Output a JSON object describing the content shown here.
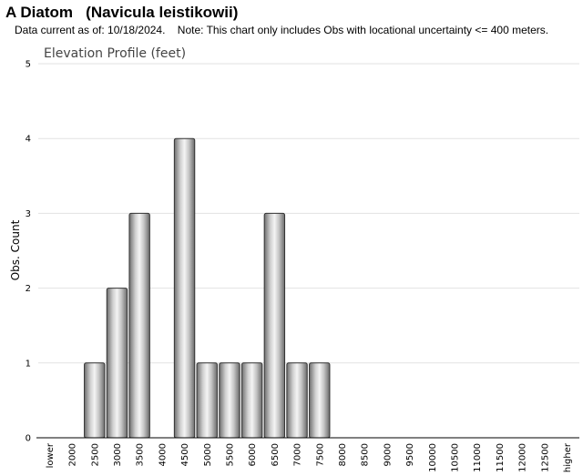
{
  "header": {
    "title": "A Diatom   (Navicula leistikowii)",
    "subtitle": "Data current as of: 10/18/2024.    Note: This chart only includes Obs with locational uncertainty <= 400 meters."
  },
  "chart_data": {
    "type": "bar",
    "title": "Elevation Profile (feet)",
    "xlabel": "",
    "ylabel": "Obs. Count",
    "ylim": [
      0,
      5
    ],
    "yticks": [
      0,
      1,
      2,
      3,
      4,
      5
    ],
    "grid": true,
    "categories": [
      "lower",
      "2000",
      "2500",
      "3000",
      "3500",
      "4000",
      "4500",
      "5000",
      "5500",
      "6000",
      "6500",
      "7000",
      "7500",
      "8000",
      "8500",
      "9000",
      "9500",
      "10000",
      "10500",
      "11000",
      "11500",
      "12000",
      "12500",
      "higher"
    ],
    "values": [
      0,
      0,
      1,
      2,
      3,
      0,
      4,
      1,
      1,
      1,
      3,
      1,
      1,
      0,
      0,
      0,
      0,
      0,
      0,
      0,
      0,
      0,
      0,
      0
    ],
    "bar_color": "#b8b8b8"
  }
}
